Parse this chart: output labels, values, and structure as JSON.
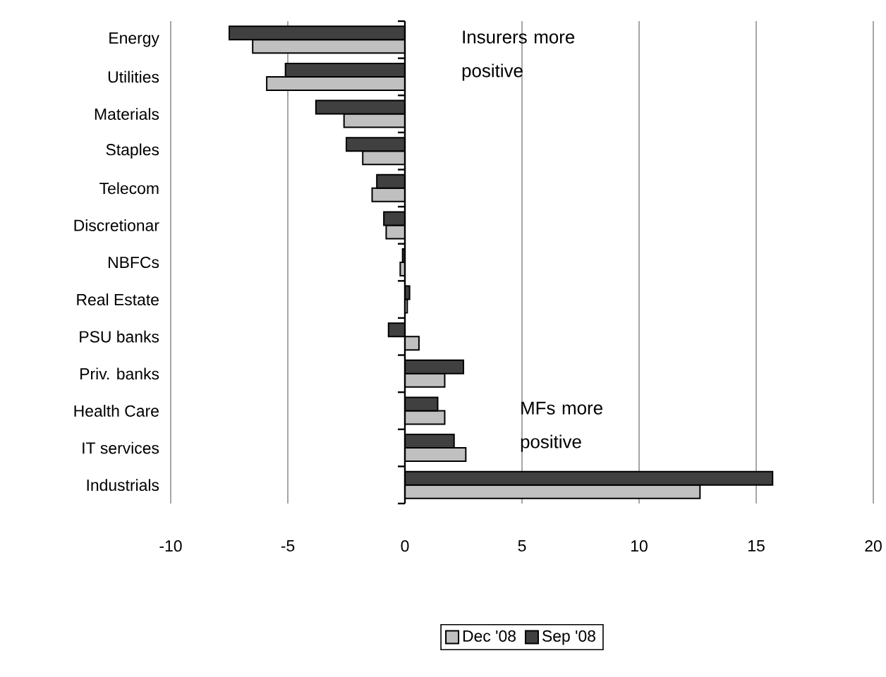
{
  "chart_data": {
    "type": "bar",
    "orientation": "horizontal",
    "categories": [
      "Energy",
      "Utilities",
      "Materials",
      "Staples",
      "Telecom",
      "Discretionar",
      "NBFCs",
      "Real Estate",
      "PSU banks",
      "Priv. banks",
      "Health Care",
      "IT services",
      "Industrials"
    ],
    "series": [
      {
        "name": "Dec '08",
        "color": "#c0c0c0",
        "values": [
          -6.5,
          -5.9,
          -2.6,
          -1.8,
          -1.4,
          -0.8,
          -0.2,
          0.1,
          0.6,
          1.7,
          1.7,
          2.6,
          12.6
        ]
      },
      {
        "name": "Sep '08",
        "color": "#404040",
        "values": [
          -7.5,
          -5.1,
          -3.8,
          -2.5,
          -1.2,
          -0.9,
          -0.1,
          0.2,
          -0.7,
          2.5,
          1.4,
          2.1,
          15.7
        ]
      }
    ],
    "xlim": [
      -10,
      20
    ],
    "xticks": [
      -10,
      -5,
      0,
      5,
      10,
      15,
      20
    ],
    "grid": "x",
    "legend": "bottom",
    "annotations": [
      "Insurers more positive",
      "MFs more positive"
    ]
  }
}
